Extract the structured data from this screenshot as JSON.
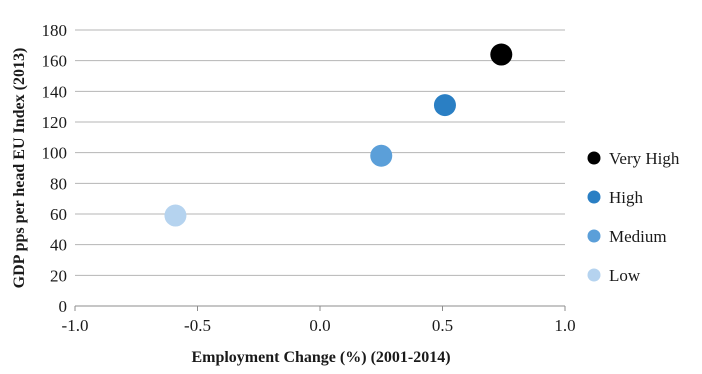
{
  "chart_data": {
    "type": "scatter",
    "xlabel": "Employment Change (%) (2001-2014)",
    "ylabel": "GDP pps per head EU Index (2013)",
    "xlim": [
      -1.0,
      1.0
    ],
    "ylim": [
      0,
      180
    ],
    "x_ticks": [
      "-1.0",
      "-0.5",
      "0.0",
      "0.5",
      "1.0"
    ],
    "y_ticks": [
      "0",
      "20",
      "40",
      "60",
      "80",
      "100",
      "120",
      "140",
      "160",
      "180"
    ],
    "grid": "horizontal",
    "legend_position": "right",
    "series": [
      {
        "name": "Very High",
        "color": "#000000",
        "x": 0.74,
        "y": 164
      },
      {
        "name": "High",
        "color": "#2a7fc4",
        "x": 0.51,
        "y": 131
      },
      {
        "name": "Medium",
        "color": "#5b9fd9",
        "x": 0.25,
        "y": 98
      },
      {
        "name": "Low",
        "color": "#b5d3ef",
        "x": -0.59,
        "y": 59
      }
    ]
  }
}
